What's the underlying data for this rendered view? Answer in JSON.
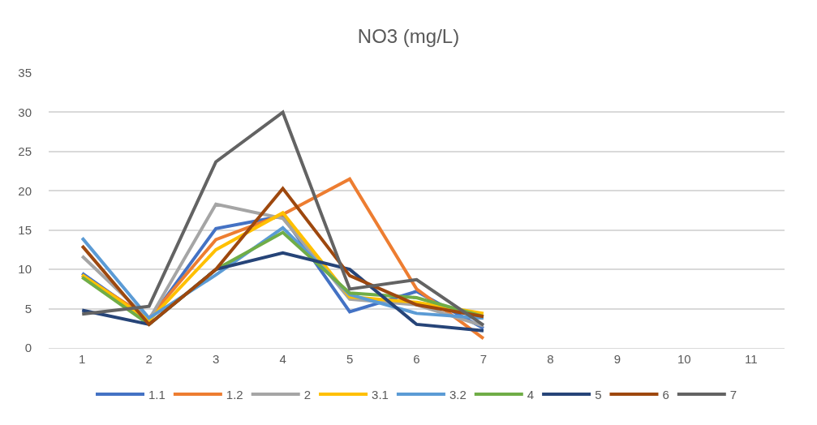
{
  "chart_data": {
    "type": "line",
    "title": "NO3 (mg/L)",
    "categories": [
      "1",
      "2",
      "3",
      "4",
      "5",
      "6",
      "7",
      "8",
      "9",
      "10",
      "11"
    ],
    "series": [
      {
        "name": "1.1",
        "color": "#4472c4",
        "values": [
          9.5,
          3.5,
          15.2,
          16.8,
          4.6,
          7.2,
          2.5,
          null,
          null,
          null,
          null
        ]
      },
      {
        "name": "1.2",
        "color": "#ed7d31",
        "values": [
          9.2,
          3.8,
          13.8,
          17.0,
          21.5,
          7.5,
          1.2,
          null,
          null,
          null,
          null
        ]
      },
      {
        "name": "2",
        "color": "#a5a5a5",
        "values": [
          11.7,
          3.6,
          18.3,
          16.5,
          6.2,
          5.5,
          2.8,
          null,
          null,
          null,
          null
        ]
      },
      {
        "name": "3.1",
        "color": "#ffc000",
        "values": [
          9.3,
          3.5,
          12.5,
          17.2,
          6.5,
          5.8,
          4.4,
          null,
          null,
          null,
          null
        ]
      },
      {
        "name": "3.2",
        "color": "#5b9bd5",
        "values": [
          14.0,
          3.8,
          9.3,
          15.3,
          6.8,
          4.4,
          3.8,
          null,
          null,
          null,
          null
        ]
      },
      {
        "name": "4",
        "color": "#70ad47",
        "values": [
          9.0,
          3.0,
          10.0,
          14.7,
          7.0,
          6.4,
          4.0,
          null,
          null,
          null,
          null
        ]
      },
      {
        "name": "5",
        "color": "#264478",
        "values": [
          4.8,
          3.0,
          10.0,
          12.1,
          10.0,
          3.0,
          2.2,
          null,
          null,
          null,
          null
        ]
      },
      {
        "name": "6",
        "color": "#9e480e",
        "values": [
          13.0,
          3.0,
          10.0,
          20.3,
          9.2,
          5.5,
          4.0,
          null,
          null,
          null,
          null
        ]
      },
      {
        "name": "7",
        "color": "#636363",
        "values": [
          4.3,
          5.3,
          23.7,
          30.0,
          7.5,
          8.7,
          2.9,
          null,
          null,
          null,
          null
        ]
      }
    ],
    "ylim": [
      0,
      35
    ],
    "yticks": [
      0,
      5,
      10,
      15,
      20,
      25,
      30,
      35
    ],
    "grid": "y",
    "legend": "bottom",
    "marker": "none",
    "line_style": "solid"
  }
}
